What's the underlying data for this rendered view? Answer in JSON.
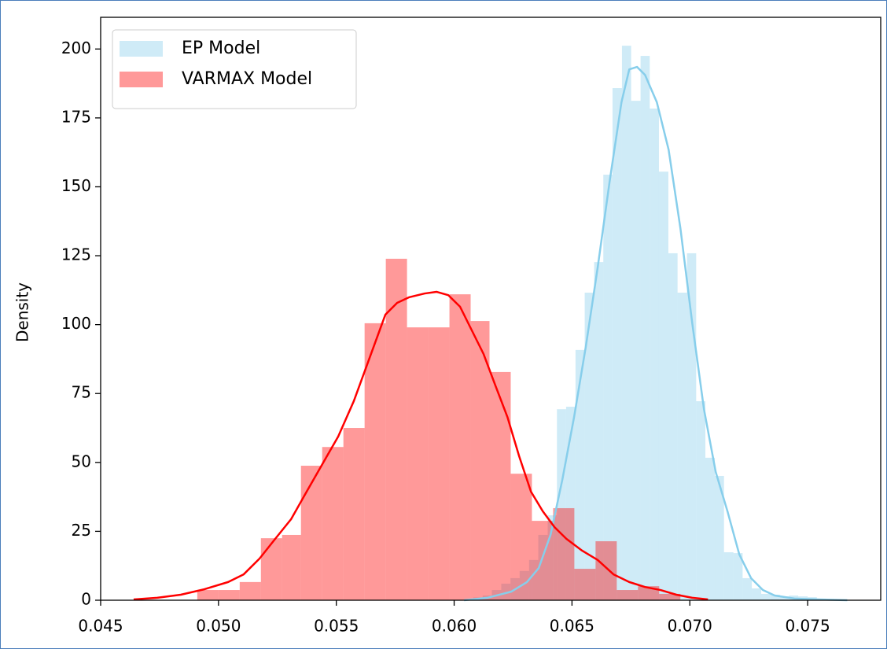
{
  "chart_data": {
    "type": "histogram",
    "ylabel": "Density",
    "xlim": [
      0.045,
      0.0781
    ],
    "ylim": [
      0,
      211.5
    ],
    "xticks": [
      0.045,
      {
        "value": 0.05,
        "label": "0.050"
      },
      0.055,
      {
        "value": 0.06,
        "label": "0.060"
      },
      0.065,
      {
        "value": 0.07,
        "label": "0.070"
      },
      0.075
    ],
    "yticks": [
      0,
      25,
      50,
      75,
      100,
      125,
      150,
      175,
      200
    ],
    "grid": false,
    "legend": "upper left",
    "series": [
      {
        "name": "EP Model",
        "color": "#87ceeb",
        "bins": [
          0.06042,
          0.06081,
          0.06121,
          0.0616,
          0.062,
          0.06239,
          0.06278,
          0.06318,
          0.06357,
          0.06397,
          0.06436,
          0.06475,
          0.06515,
          0.06554,
          0.06594,
          0.06633,
          0.06672,
          0.06712,
          0.06751,
          0.06791,
          0.0683,
          0.06869,
          0.06909,
          0.06948,
          0.06988,
          0.07027,
          0.07066,
          0.07106,
          0.07145,
          0.07185,
          0.07224,
          0.07263,
          0.07303,
          0.07342,
          0.07382,
          0.07421,
          0.0746,
          0.075,
          0.07539,
          0.07579,
          0.07618
        ],
        "values": [
          0.3,
          1,
          1.7,
          3.7,
          6,
          8,
          10.6,
          14.6,
          23.7,
          30.8,
          69.3,
          70.2,
          90.8,
          111.6,
          122.7,
          154.4,
          185.8,
          201.2,
          181.2,
          197.5,
          178.4,
          155.5,
          125.9,
          111.6,
          125.9,
          72.2,
          51.7,
          45.1,
          17.4,
          17.1,
          8,
          4.3,
          2.3,
          2,
          1.4,
          1.7,
          1.4,
          1.1,
          0.6,
          0.3
        ],
        "kde": {
          "x": [
            0.06042,
            0.06142,
            0.06242,
            0.06309,
            0.06359,
            0.06409,
            0.06459,
            0.06509,
            0.06559,
            0.06609,
            0.0666,
            0.0671,
            0.06743,
            0.06776,
            0.0681,
            0.0686,
            0.0691,
            0.0696,
            0.0701,
            0.0706,
            0.0711,
            0.0716,
            0.0721,
            0.0726,
            0.0731,
            0.0736,
            0.07444,
            0.07544,
            0.07668
          ],
          "values": [
            0,
            0.9,
            3.1,
            6.6,
            11.7,
            23.7,
            43.7,
            66.5,
            92.2,
            120.7,
            152.1,
            180.7,
            192.6,
            193.5,
            190.6,
            180.7,
            163.5,
            135,
            100.7,
            69.3,
            46.5,
            32.2,
            16.6,
            8,
            3.7,
            1.7,
            0.6,
            0.3,
            0
          ]
        }
      },
      {
        "name": "VARMAX Model",
        "color": "#ff0000",
        "bins": [
          0.0491,
          0.05,
          0.0509,
          0.0518,
          0.0527,
          0.0535,
          0.0544,
          0.0553,
          0.0562,
          0.0571,
          0.058,
          0.0589,
          0.0598,
          0.0607,
          0.0615,
          0.0624,
          0.0633,
          0.0642,
          0.0651,
          0.066,
          0.0669,
          0.0678,
          0.0687,
          0.0696
        ],
        "values": [
          3.7,
          3.7,
          6.6,
          22.5,
          23.7,
          48.8,
          55.6,
          62.5,
          100.5,
          123.9,
          99,
          99,
          111,
          101.3,
          82.8,
          45.9,
          28.8,
          33.4,
          11.4,
          21.4,
          3.7,
          5.1,
          2.3
        ],
        "kde": {
          "x": [
            0.0464,
            0.0474,
            0.0484,
            0.04941,
            0.05041,
            0.05107,
            0.05174,
            0.05241,
            0.05308,
            0.05374,
            0.05441,
            0.05508,
            0.05574,
            0.05641,
            0.05708,
            0.05758,
            0.05808,
            0.05875,
            0.05925,
            0.05975,
            0.06025,
            0.06075,
            0.06125,
            0.06175,
            0.06226,
            0.06276,
            0.06326,
            0.06376,
            0.06426,
            0.06476,
            0.06543,
            0.06609,
            0.06676,
            0.06743,
            0.0681,
            0.06876,
            0.06943,
            0.0701,
            0.07077
          ],
          "values": [
            0.3,
            0.9,
            2,
            4,
            6.6,
            9.4,
            15.1,
            22.3,
            29.4,
            39.4,
            49.4,
            59.4,
            72.2,
            87.9,
            103.6,
            107.9,
            109.9,
            111.3,
            111.9,
            110.7,
            106.5,
            97.9,
            89.3,
            77.9,
            66.5,
            52.2,
            39.4,
            32.3,
            26.5,
            22.3,
            18,
            14.6,
            9.4,
            6.6,
            4.8,
            3.7,
            2,
            0.9,
            0.3
          ]
        }
      }
    ]
  }
}
